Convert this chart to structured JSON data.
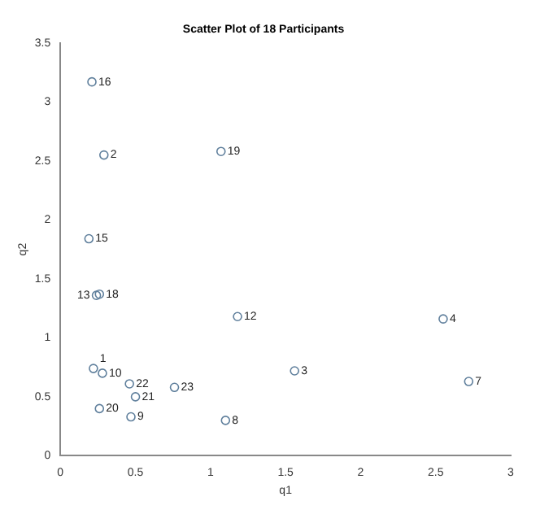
{
  "chart_data": {
    "type": "scatter",
    "title": "Scatter Plot of 18 Participants",
    "xlabel": "q1",
    "ylabel": "q2",
    "x": [
      0.22,
      0.29,
      1.56,
      2.55,
      2.72,
      1.1,
      0.47,
      0.28,
      1.18,
      0.24,
      0.19,
      0.21,
      0.26,
      1.07,
      0.26,
      0.5,
      0.46,
      0.76
    ],
    "series": [
      {
        "color": "#5f7f9c",
        "values": [
          0.74,
          2.55,
          0.72,
          1.16,
          0.63,
          0.3,
          0.33,
          0.7,
          1.18,
          1.36,
          1.84,
          3.17,
          1.37,
          2.58,
          0.4,
          0.5,
          0.61,
          0.58
        ]
      }
    ],
    "annotations": [
      {
        "text": "1",
        "x": 0.22,
        "y": 0.74
      },
      {
        "text": "2",
        "x": 0.29,
        "y": 2.55
      },
      {
        "text": "3",
        "x": 1.56,
        "y": 0.72
      },
      {
        "text": "4",
        "x": 2.55,
        "y": 1.16
      },
      {
        "text": "7",
        "x": 2.72,
        "y": 0.63
      },
      {
        "text": "8",
        "x": 1.1,
        "y": 0.3
      },
      {
        "text": "9",
        "x": 0.47,
        "y": 0.33
      },
      {
        "text": "10",
        "x": 0.28,
        "y": 0.7
      },
      {
        "text": "12",
        "x": 1.18,
        "y": 1.18
      },
      {
        "text": "13",
        "x": 0.24,
        "y": 1.36
      },
      {
        "text": "15",
        "x": 0.19,
        "y": 1.84
      },
      {
        "text": "16",
        "x": 0.21,
        "y": 3.17
      },
      {
        "text": "18",
        "x": 0.26,
        "y": 1.37
      },
      {
        "text": "19",
        "x": 1.07,
        "y": 2.58
      },
      {
        "text": "20",
        "x": 0.26,
        "y": 0.4
      },
      {
        "text": "21",
        "x": 0.5,
        "y": 0.5
      },
      {
        "text": "22",
        "x": 0.46,
        "y": 0.61
      },
      {
        "text": "23",
        "x": 0.76,
        "y": 0.58
      }
    ],
    "xlim": [
      0,
      3
    ],
    "xticks": [
      0,
      0.5,
      1,
      1.5,
      2,
      2.5,
      3
    ],
    "ylim": [
      0,
      3.5
    ],
    "yticks": [
      0,
      0.5,
      1,
      1.5,
      2,
      2.5,
      3,
      3.5
    ],
    "marker": "circle",
    "grid": false,
    "legend": false
  }
}
